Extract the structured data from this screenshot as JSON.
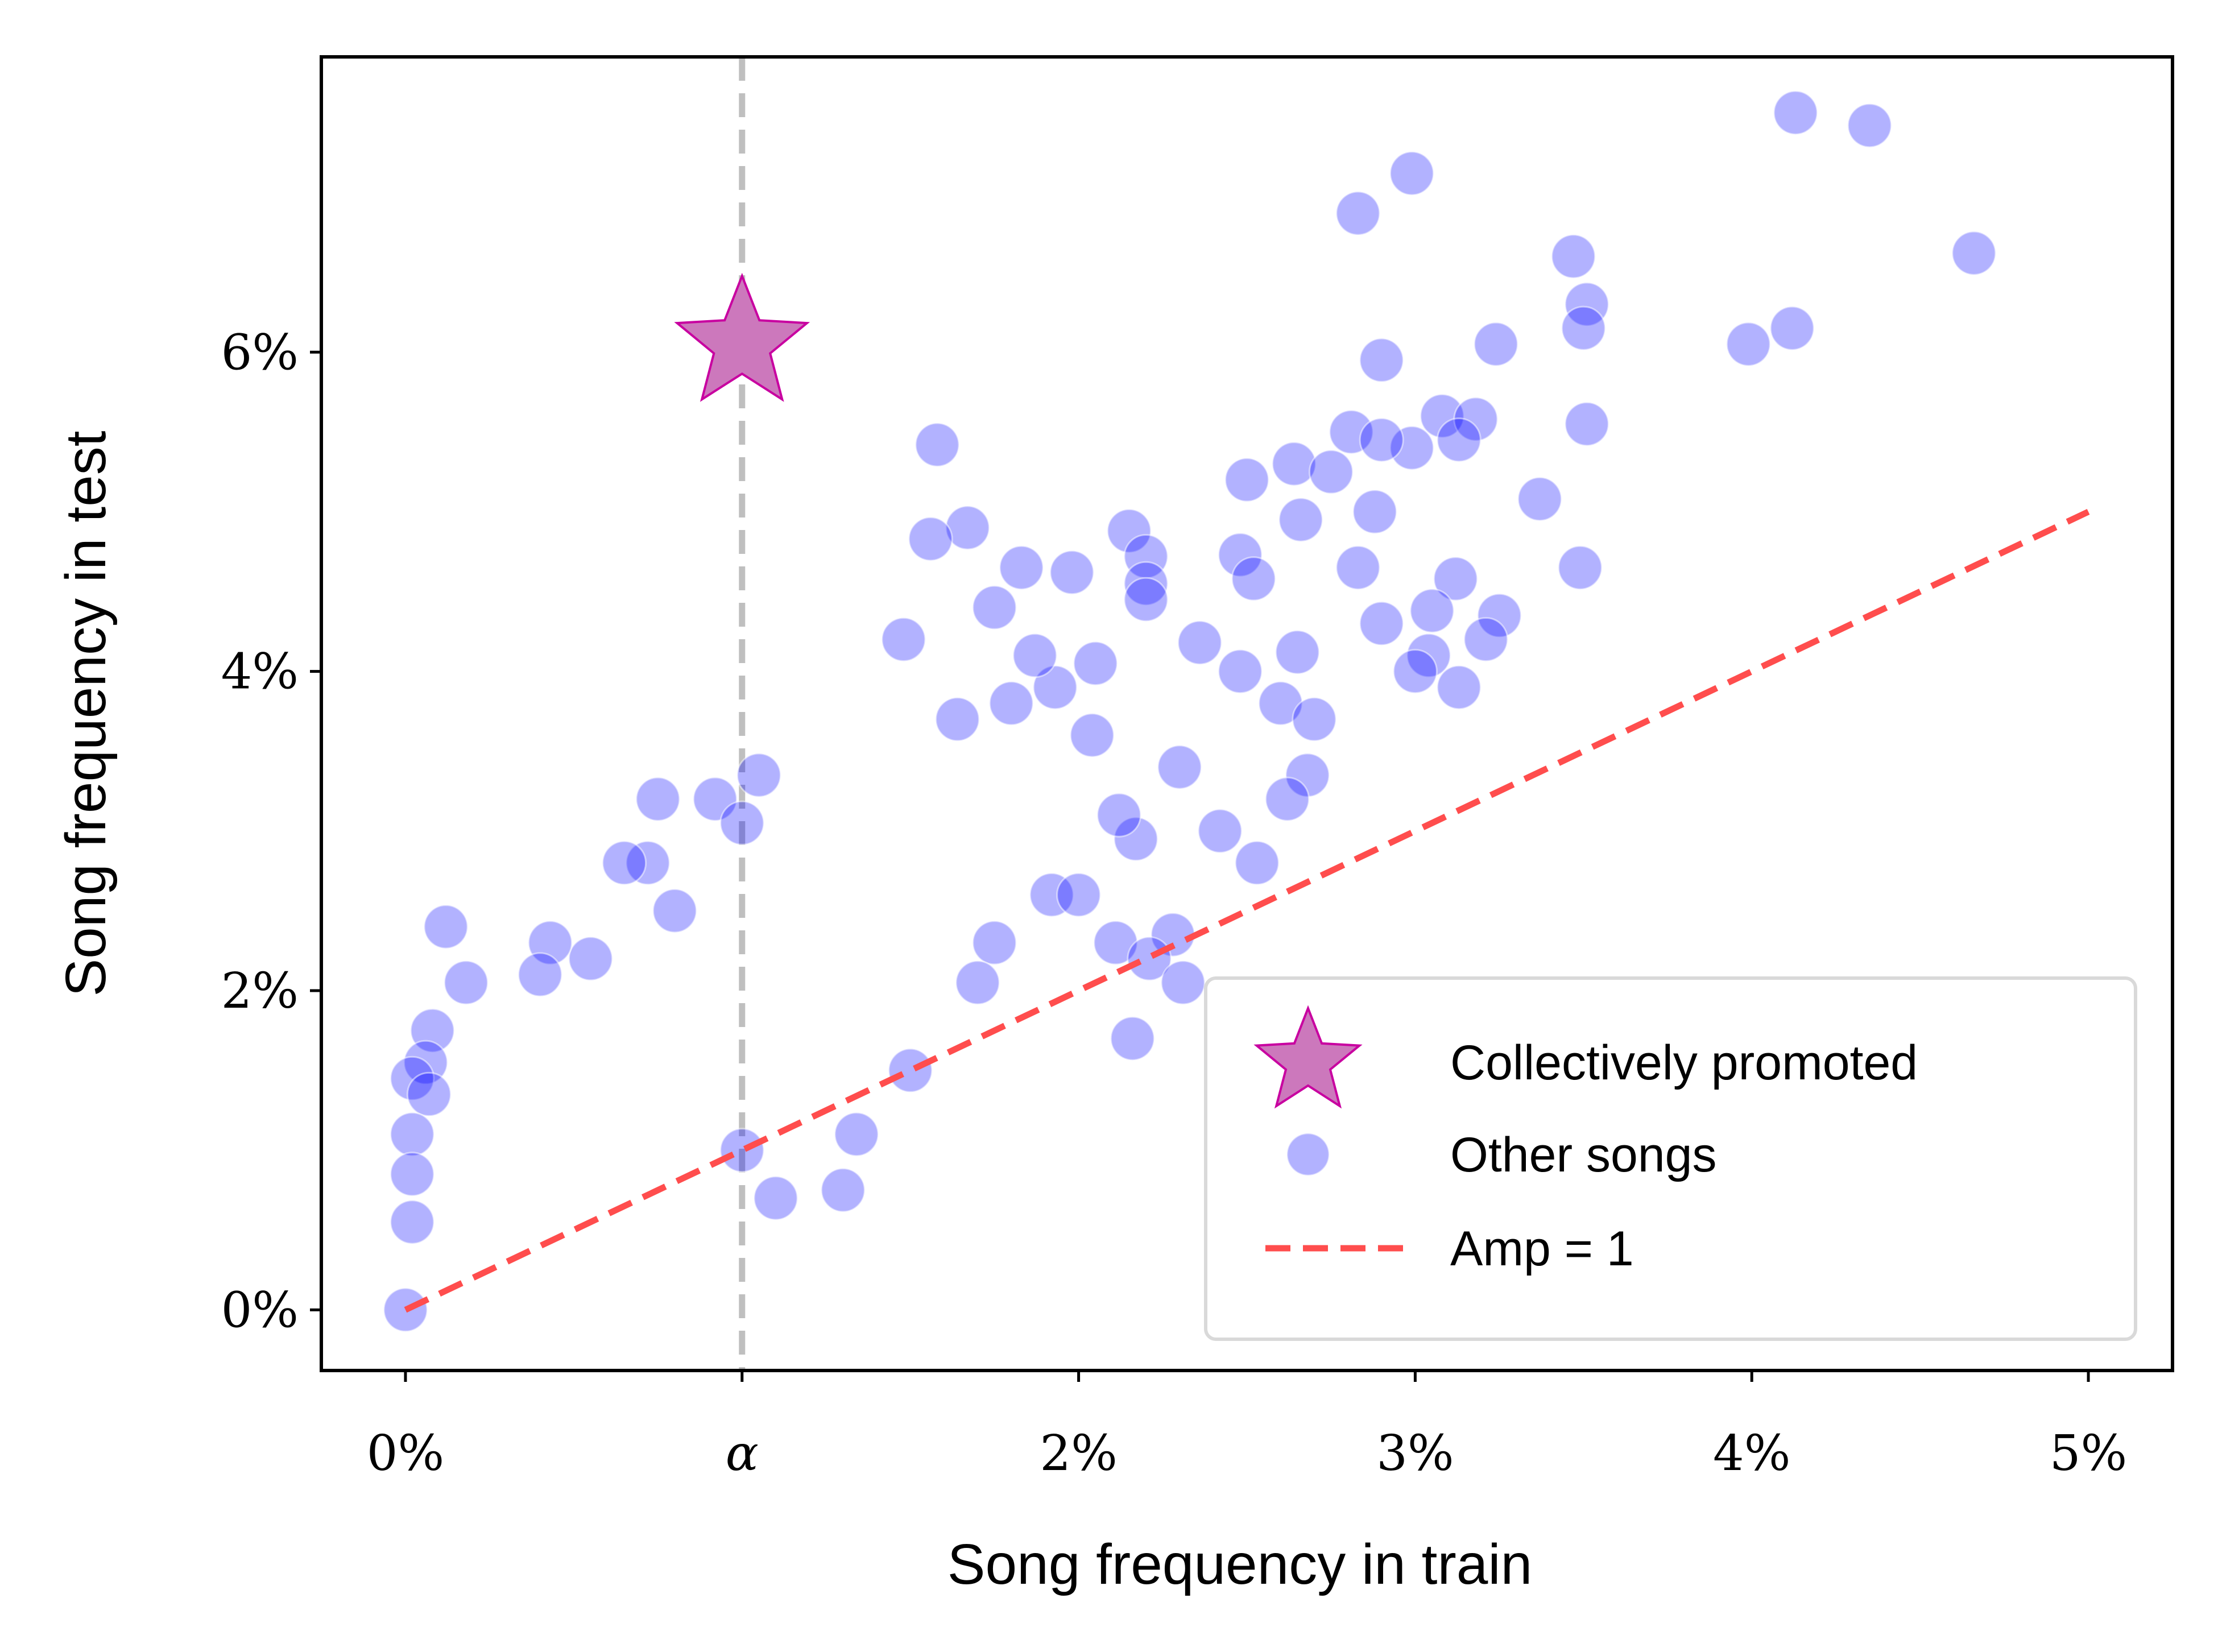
{
  "chart_data": {
    "type": "scatter",
    "xlabel": "Song frequency in train",
    "ylabel": "Song frequency in test",
    "xlim": [
      -0.25,
      5.25
    ],
    "ylim": [
      -0.38,
      7.85
    ],
    "x_ticks": [
      {
        "value": 0,
        "label": "0%"
      },
      {
        "value": 1,
        "label": "α"
      },
      {
        "value": 2,
        "label": "2%"
      },
      {
        "value": 3,
        "label": "3%"
      },
      {
        "value": 4,
        "label": "4%"
      },
      {
        "value": 5,
        "label": "5%"
      }
    ],
    "y_ticks": [
      {
        "value": 0,
        "label": "0%"
      },
      {
        "value": 2,
        "label": "2%"
      },
      {
        "value": 4,
        "label": "4%"
      },
      {
        "value": 6,
        "label": "6%"
      }
    ],
    "alpha_line": {
      "x": 1,
      "label": "α",
      "color": "#bfbfbf"
    },
    "grid": false,
    "legend_position": "lower-right",
    "series": [
      {
        "name": "Collectively promoted",
        "marker": "star",
        "color": "#cc78bc",
        "edge_color": "#c800a0",
        "points": [
          [
            1.0,
            6.05
          ]
        ]
      },
      {
        "name": "Other songs",
        "marker": "circle",
        "color": "#0000ff",
        "opacity": 0.3,
        "points": [
          [
            4.13,
            7.5
          ],
          [
            4.35,
            7.42
          ],
          [
            2.99,
            7.12
          ],
          [
            2.83,
            6.87
          ],
          [
            3.47,
            6.6
          ],
          [
            4.66,
            6.62
          ],
          [
            3.51,
            6.3
          ],
          [
            3.5,
            6.15
          ],
          [
            4.12,
            6.15
          ],
          [
            3.99,
            6.05
          ],
          [
            3.24,
            6.05
          ],
          [
            2.9,
            5.95
          ],
          [
            3.51,
            5.55
          ],
          [
            3.08,
            5.6
          ],
          [
            3.18,
            5.58
          ],
          [
            3.13,
            5.45
          ],
          [
            2.99,
            5.4
          ],
          [
            2.81,
            5.5
          ],
          [
            2.9,
            5.45
          ],
          [
            2.64,
            5.3
          ],
          [
            2.75,
            5.25
          ],
          [
            2.66,
            4.95
          ],
          [
            2.5,
            5.2
          ],
          [
            3.37,
            5.08
          ],
          [
            2.88,
            5.0
          ],
          [
            1.58,
            5.42
          ],
          [
            1.67,
            4.9
          ],
          [
            1.56,
            4.83
          ],
          [
            2.15,
            4.88
          ],
          [
            2.2,
            4.72
          ],
          [
            2.48,
            4.73
          ],
          [
            2.83,
            4.65
          ],
          [
            3.49,
            4.65
          ],
          [
            3.12,
            4.58
          ],
          [
            2.52,
            4.58
          ],
          [
            2.2,
            4.55
          ],
          [
            1.83,
            4.65
          ],
          [
            1.98,
            4.62
          ],
          [
            2.2,
            4.45
          ],
          [
            3.05,
            4.38
          ],
          [
            3.25,
            4.35
          ],
          [
            3.21,
            4.2
          ],
          [
            2.36,
            4.18
          ],
          [
            1.48,
            4.2
          ],
          [
            1.75,
            4.4
          ],
          [
            2.65,
            4.12
          ],
          [
            2.9,
            4.3
          ],
          [
            3.04,
            4.1
          ],
          [
            3.0,
            4.0
          ],
          [
            3.13,
            3.9
          ],
          [
            2.48,
            4.0
          ],
          [
            2.6,
            3.8
          ],
          [
            2.7,
            3.7
          ],
          [
            2.68,
            3.35
          ],
          [
            2.62,
            3.2
          ],
          [
            2.53,
            2.8
          ],
          [
            2.42,
            3.0
          ],
          [
            2.17,
            2.95
          ],
          [
            2.3,
            3.4
          ],
          [
            2.12,
            3.1
          ],
          [
            2.04,
            3.6
          ],
          [
            1.93,
            3.9
          ],
          [
            1.87,
            4.1
          ],
          [
            1.8,
            3.8
          ],
          [
            1.64,
            3.7
          ],
          [
            2.05,
            4.05
          ],
          [
            1.92,
            2.6
          ],
          [
            2.0,
            2.6
          ],
          [
            2.11,
            2.3
          ],
          [
            2.28,
            2.35
          ],
          [
            2.21,
            2.2
          ],
          [
            2.31,
            2.05
          ],
          [
            2.16,
            1.7
          ],
          [
            1.75,
            2.3
          ],
          [
            1.7,
            2.05
          ],
          [
            1.5,
            1.5
          ],
          [
            1.34,
            1.1
          ],
          [
            1.3,
            0.75
          ],
          [
            1.1,
            0.7
          ],
          [
            1.0,
            1.0
          ],
          [
            1.05,
            3.35
          ],
          [
            0.92,
            3.2
          ],
          [
            1.0,
            3.05
          ],
          [
            0.75,
            3.2
          ],
          [
            0.72,
            2.8
          ],
          [
            0.65,
            2.8
          ],
          [
            0.8,
            2.5
          ],
          [
            0.55,
            2.2
          ],
          [
            0.43,
            2.3
          ],
          [
            0.4,
            2.1
          ],
          [
            0.12,
            2.4
          ],
          [
            0.18,
            2.05
          ],
          [
            0.08,
            1.75
          ],
          [
            0.06,
            1.55
          ],
          [
            0.02,
            1.45
          ],
          [
            0.07,
            1.35
          ],
          [
            0.02,
            1.1
          ],
          [
            0.02,
            0.85
          ],
          [
            0.02,
            0.55
          ],
          [
            0.0,
            0.0
          ]
        ]
      },
      {
        "name": "Amp = 1",
        "marker": "dashed-line",
        "color": "#ff4d4d",
        "points": [
          [
            0,
            0
          ],
          [
            5,
            5
          ]
        ]
      }
    ]
  }
}
